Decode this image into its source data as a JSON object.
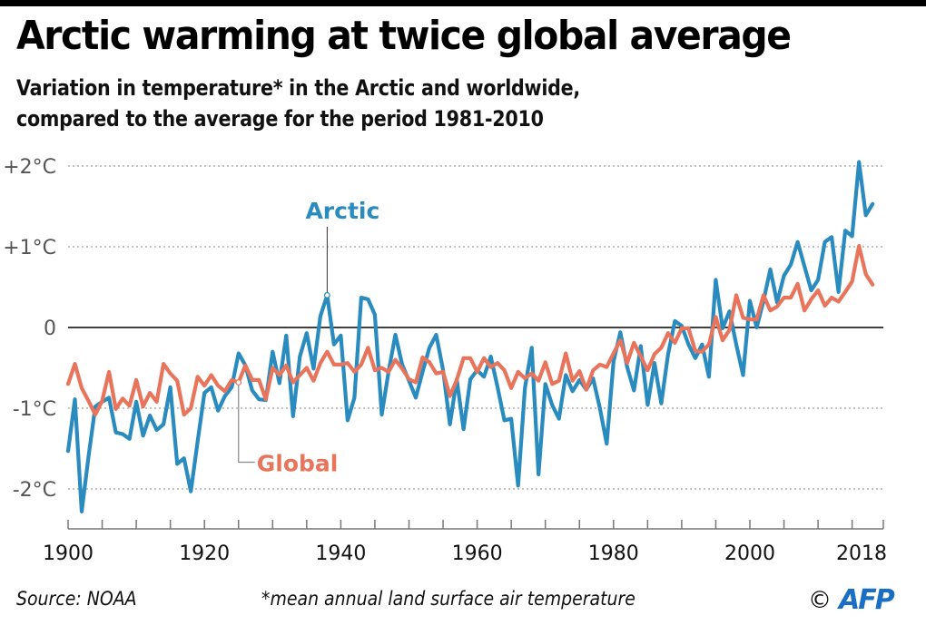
{
  "header": {
    "title": "Arctic warming at twice global average",
    "subtitle_line1": "Variation in temperature* in the Arctic and worldwide,",
    "subtitle_line2": "compared to the average for the period 1981-2010"
  },
  "footer": {
    "source": "Source: NOAA",
    "note": "*mean annual land surface air temperature",
    "copyright_symbol": "©",
    "agency": "AFP"
  },
  "colors": {
    "arctic": "#2a8bbf",
    "global": "#e8745c",
    "grid": "#888888",
    "zero_line": "#000000",
    "axis": "#777777",
    "tick_label": "#555555",
    "agency": "#1a6fc4"
  },
  "chart_data": {
    "type": "line",
    "title": "Arctic warming at twice global average",
    "subtitle": "Variation in temperature* in the Arctic and worldwide, compared to the average for the period 1981-2010",
    "xlabel": "",
    "ylabel": "",
    "xlim": [
      1900,
      2018
    ],
    "ylim": [
      -2.5,
      2.2
    ],
    "grid": true,
    "x_tick_labels": [
      "1900",
      "1920",
      "1940",
      "1960",
      "1980",
      "2000",
      "2018"
    ],
    "x_tick_values": [
      1900,
      1920,
      1940,
      1960,
      1980,
      2000,
      2018
    ],
    "x_minor_tick_step": 5,
    "y_ticks": [
      {
        "value": 2,
        "label": "+2°C"
      },
      {
        "value": 1,
        "label": "+1°C"
      },
      {
        "value": 0,
        "label": "0"
      },
      {
        "value": -1,
        "label": "-1°C"
      },
      {
        "value": -2,
        "label": "-2°C"
      }
    ],
    "annotations": [
      {
        "text": "Arctic",
        "series": "Arctic",
        "year": 1938
      },
      {
        "text": "Global",
        "series": "Global",
        "year": 1925
      }
    ],
    "x": [
      1900,
      1901,
      1902,
      1903,
      1904,
      1905,
      1906,
      1907,
      1908,
      1909,
      1910,
      1911,
      1912,
      1913,
      1914,
      1915,
      1916,
      1917,
      1918,
      1919,
      1920,
      1921,
      1922,
      1923,
      1924,
      1925,
      1926,
      1927,
      1928,
      1929,
      1930,
      1931,
      1932,
      1933,
      1934,
      1935,
      1936,
      1937,
      1938,
      1939,
      1940,
      1941,
      1942,
      1943,
      1944,
      1945,
      1946,
      1947,
      1948,
      1949,
      1950,
      1951,
      1952,
      1953,
      1954,
      1955,
      1956,
      1957,
      1958,
      1959,
      1960,
      1961,
      1962,
      1963,
      1964,
      1965,
      1966,
      1967,
      1968,
      1969,
      1970,
      1971,
      1972,
      1973,
      1974,
      1975,
      1976,
      1977,
      1978,
      1979,
      1980,
      1981,
      1982,
      1983,
      1984,
      1985,
      1986,
      1987,
      1988,
      1989,
      1990,
      1991,
      1992,
      1993,
      1994,
      1995,
      1996,
      1997,
      1998,
      1999,
      2000,
      2001,
      2002,
      2003,
      2004,
      2005,
      2006,
      2007,
      2008,
      2009,
      2010,
      2011,
      2012,
      2013,
      2014,
      2015,
      2016,
      2017,
      2018
    ],
    "series": [
      {
        "name": "Arctic",
        "values": [
          -1.53,
          -0.89,
          -2.28,
          -1.6,
          -0.98,
          -0.92,
          -0.87,
          -1.3,
          -1.32,
          -1.38,
          -0.92,
          -1.34,
          -1.09,
          -1.27,
          -1.2,
          -0.74,
          -1.69,
          -1.62,
          -2.03,
          -1.41,
          -0.81,
          -0.74,
          -1.03,
          -0.85,
          -0.74,
          -0.32,
          -0.47,
          -0.78,
          -0.89,
          -0.9,
          -0.3,
          -0.69,
          -0.1,
          -1.1,
          -0.36,
          -0.07,
          -0.51,
          0.14,
          0.4,
          -0.21,
          -0.1,
          -1.15,
          -0.87,
          0.37,
          0.35,
          0.16,
          -1.08,
          -0.55,
          -0.09,
          -0.46,
          -0.66,
          -0.87,
          -0.55,
          -0.25,
          -0.09,
          -0.53,
          -1.2,
          -0.64,
          -1.26,
          -0.64,
          -0.53,
          -0.61,
          -0.36,
          -0.74,
          -1.15,
          -1.13,
          -1.96,
          -0.75,
          -0.25,
          -1.82,
          -0.7,
          -0.96,
          -1.13,
          -0.59,
          -0.79,
          -0.65,
          -0.77,
          -0.63,
          -1.0,
          -1.44,
          -0.42,
          -0.06,
          -0.49,
          -0.78,
          -0.23,
          -0.96,
          -0.44,
          -0.94,
          -0.33,
          0.08,
          0.02,
          -0.21,
          -0.38,
          -0.21,
          -0.61,
          0.59,
          -0.01,
          0.2,
          -0.21,
          -0.59,
          0.33,
          0.0,
          0.33,
          0.72,
          0.31,
          0.64,
          0.78,
          1.06,
          0.76,
          0.46,
          0.59,
          1.06,
          1.12,
          0.44,
          1.2,
          1.13,
          2.05,
          1.39,
          1.53
        ]
      },
      {
        "name": "Global",
        "values": [
          -0.7,
          -0.45,
          -0.75,
          -0.91,
          -1.08,
          -0.91,
          -0.55,
          -1.01,
          -0.88,
          -0.97,
          -0.65,
          -0.98,
          -0.81,
          -0.92,
          -0.45,
          -0.57,
          -0.66,
          -1.08,
          -1.0,
          -0.61,
          -0.72,
          -0.59,
          -0.72,
          -0.79,
          -0.65,
          -0.68,
          -0.47,
          -0.65,
          -0.65,
          -0.89,
          -0.5,
          -0.59,
          -0.47,
          -0.68,
          -0.59,
          -0.5,
          -0.66,
          -0.44,
          -0.3,
          -0.46,
          -0.46,
          -0.44,
          -0.55,
          -0.46,
          -0.25,
          -0.53,
          -0.5,
          -0.55,
          -0.4,
          -0.51,
          -0.64,
          -0.68,
          -0.37,
          -0.43,
          -0.57,
          -0.55,
          -0.85,
          -0.65,
          -0.38,
          -0.38,
          -0.55,
          -0.38,
          -0.49,
          -0.44,
          -0.53,
          -0.75,
          -0.55,
          -0.63,
          -0.57,
          -0.66,
          -0.43,
          -0.7,
          -0.66,
          -0.32,
          -0.66,
          -0.54,
          -0.77,
          -0.53,
          -0.46,
          -0.49,
          -0.32,
          -0.16,
          -0.44,
          -0.19,
          -0.36,
          -0.53,
          -0.33,
          -0.25,
          -0.07,
          -0.19,
          -0.01,
          -0.01,
          -0.29,
          -0.3,
          -0.21,
          0.13,
          -0.16,
          -0.03,
          0.4,
          0.12,
          0.1,
          0.1,
          0.4,
          0.21,
          0.26,
          0.37,
          0.37,
          0.54,
          0.21,
          0.35,
          0.46,
          0.27,
          0.37,
          0.32,
          0.44,
          0.57,
          1.01,
          0.66,
          0.53
        ]
      }
    ]
  }
}
